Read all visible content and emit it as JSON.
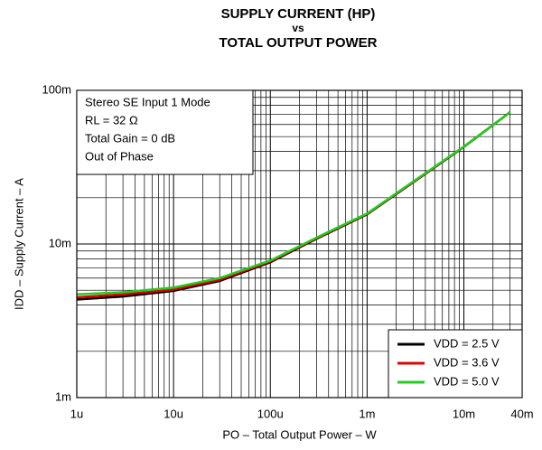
{
  "chart_data": {
    "type": "line",
    "title": [
      "SUPPLY CURRENT (HP)",
      "vs",
      "TOTAL OUTPUT POWER"
    ],
    "x_label": "PO – Total Output Power – W",
    "y_label": "IDD – Supply Current – A",
    "annotation": [
      "Stereo SE Input 1 Mode",
      "RL = 32 Ω",
      "Total Gain = 0 dB",
      "Out of Phase"
    ],
    "x": [
      1e-06,
      3e-06,
      1e-05,
      3e-05,
      0.0001,
      0.0003,
      0.001,
      0.003,
      0.01,
      0.03
    ],
    "series": [
      {
        "name": "VDD = 2.5 V",
        "color": "#000000",
        "values": [
          0.00435,
          0.00455,
          0.00495,
          0.00575,
          0.0076,
          0.0108,
          0.0156,
          0.0252,
          0.0428,
          0.072
        ]
      },
      {
        "name": "VDD = 3.6 V",
        "color": "#e00000",
        "values": [
          0.0045,
          0.0047,
          0.00505,
          0.00585,
          0.0077,
          0.0109,
          0.0157,
          0.0253,
          0.043,
          0.072
        ]
      },
      {
        "name": "VDD = 5.0 V",
        "color": "#22cc22",
        "values": [
          0.0047,
          0.00485,
          0.0052,
          0.006,
          0.0078,
          0.011,
          0.0158,
          0.0255,
          0.043,
          0.072
        ]
      }
    ],
    "xscale": "log",
    "yscale": "log",
    "xlim": [
      1e-06,
      0.04
    ],
    "ylim": [
      0.001,
      0.1
    ],
    "xticks": [
      {
        "value": 1e-06,
        "label": "1u"
      },
      {
        "value": 1e-05,
        "label": "10u"
      },
      {
        "value": 0.0001,
        "label": "100u"
      },
      {
        "value": 0.001,
        "label": "1m"
      },
      {
        "value": 0.01,
        "label": "10m"
      },
      {
        "value": 0.04,
        "label": "40m"
      }
    ],
    "yticks": [
      {
        "value": 0.001,
        "label": "1m"
      },
      {
        "value": 0.01,
        "label": "10m"
      },
      {
        "value": 0.1,
        "label": "100m"
      }
    ],
    "grid": true,
    "minor_grid": true,
    "legend": "lower right"
  }
}
